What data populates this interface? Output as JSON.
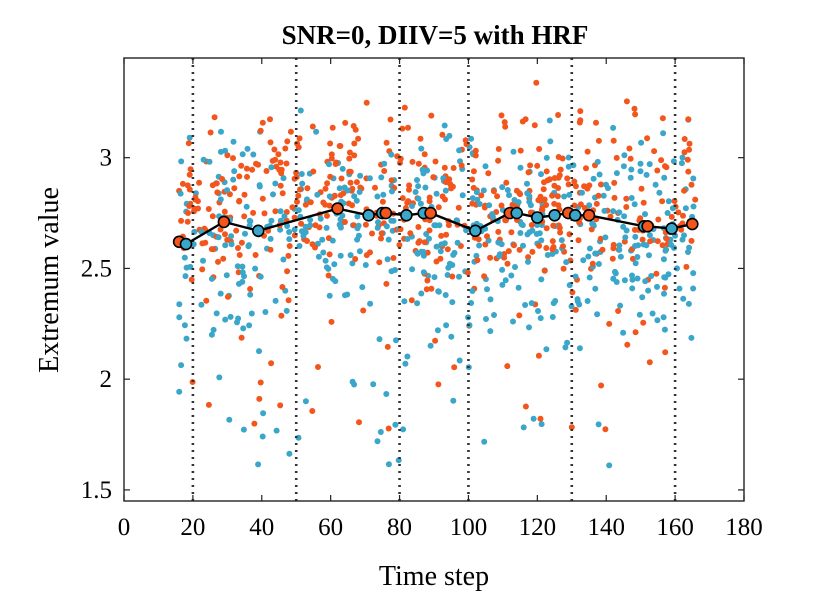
{
  "chart_data": {
    "type": "scatter",
    "title": "SNR=0, DIIV=5 with HRF",
    "xlabel": "Time step",
    "ylabel": "Extremum value",
    "xlim": [
      0,
      180
    ],
    "ylim": [
      1.45,
      3.45
    ],
    "x_ticks": [
      "0",
      "20",
      "40",
      "60",
      "80",
      "100",
      "120",
      "140",
      "160",
      "180"
    ],
    "x_tick_values": [
      0,
      20,
      40,
      60,
      80,
      100,
      120,
      140,
      160,
      180
    ],
    "y_ticks": [
      "1.5",
      "2",
      "2.5",
      "3"
    ],
    "y_tick_values": [
      1.5,
      2,
      2.5,
      3
    ],
    "x_range_of_points": [
      16,
      166
    ],
    "vertical_dotted_lines": [
      20,
      50,
      80,
      100,
      130,
      160
    ],
    "colors": {
      "series_a": "#f2561d",
      "series_b": "#3aa6c9",
      "mean_line": "#000000"
    },
    "series": [
      {
        "name": "series A (orange)",
        "color": "#f2561d",
        "center": 2.8,
        "spread": 0.24,
        "note": "dense scatter of extremum values across time steps"
      },
      {
        "name": "series B (blue)",
        "color": "#3aa6c9",
        "center": 2.66,
        "spread": 0.26,
        "note": "dense scatter of extremum values across time steps"
      },
      {
        "name": "mean trend",
        "color": "#000000",
        "points": [
          {
            "x": 16,
            "y": 2.62,
            "marker": "orange"
          },
          {
            "x": 18,
            "y": 2.61,
            "marker": "blue"
          },
          {
            "x": 29,
            "y": 2.71,
            "marker": "orange"
          },
          {
            "x": 39,
            "y": 2.67,
            "marker": "blue"
          },
          {
            "x": 62,
            "y": 2.77,
            "marker": "orange"
          },
          {
            "x": 71,
            "y": 2.74,
            "marker": "blue"
          },
          {
            "x": 75,
            "y": 2.75,
            "marker": "blue"
          },
          {
            "x": 76,
            "y": 2.75,
            "marker": "orange"
          },
          {
            "x": 82,
            "y": 2.74,
            "marker": "blue"
          },
          {
            "x": 87,
            "y": 2.75,
            "marker": "blue"
          },
          {
            "x": 89,
            "y": 2.75,
            "marker": "orange"
          },
          {
            "x": 102,
            "y": 2.67,
            "marker": "blue"
          },
          {
            "x": 112,
            "y": 2.75,
            "marker": "orange"
          },
          {
            "x": 114,
            "y": 2.75,
            "marker": "blue"
          },
          {
            "x": 120,
            "y": 2.73,
            "marker": "blue"
          },
          {
            "x": 125,
            "y": 2.74,
            "marker": "blue"
          },
          {
            "x": 129,
            "y": 2.75,
            "marker": "orange"
          },
          {
            "x": 131,
            "y": 2.74,
            "marker": "blue"
          },
          {
            "x": 135,
            "y": 2.74,
            "marker": "orange"
          },
          {
            "x": 151,
            "y": 2.69,
            "marker": "blue"
          },
          {
            "x": 152,
            "y": 2.69,
            "marker": "orange"
          },
          {
            "x": 159,
            "y": 2.68,
            "marker": "blue"
          },
          {
            "x": 165,
            "y": 2.7,
            "marker": "orange"
          }
        ]
      }
    ]
  }
}
